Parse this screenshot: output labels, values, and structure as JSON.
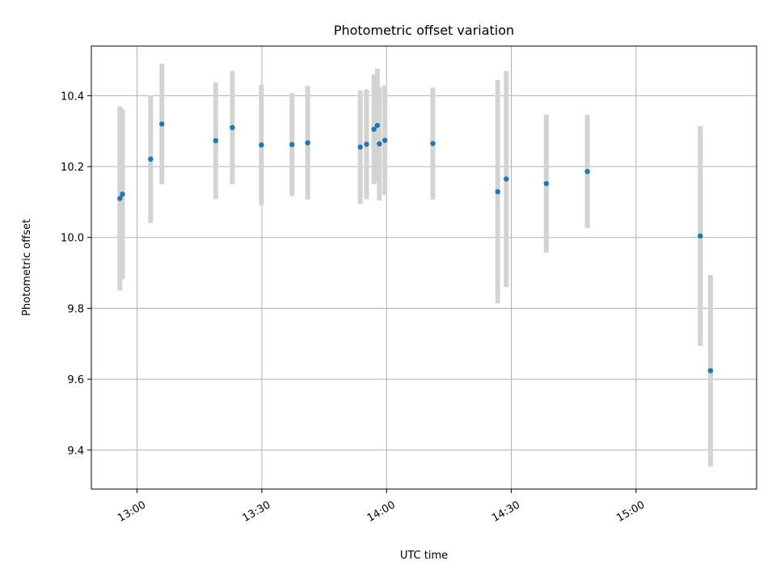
{
  "chart_data": {
    "type": "scatter",
    "title": "Photometric offset variation",
    "xlabel": "UTC time",
    "ylabel": "Photometric offset",
    "xlim": [
      "12:49",
      "15:29"
    ],
    "ylim": [
      9.29,
      10.54
    ],
    "x_ticks": [
      "13:00",
      "13:30",
      "14:00",
      "14:30",
      "15:00"
    ],
    "y_ticks": [
      9.4,
      9.6,
      9.8,
      10.0,
      10.2,
      10.4
    ],
    "y_tick_labels": [
      "9.4",
      "9.6",
      "9.8",
      "10.0",
      "10.2",
      "10.4"
    ],
    "grid": true,
    "colors": {
      "point": "#1f77b4",
      "errorbar": "#d3d3d3",
      "grid": "#b0b0b0"
    },
    "points": [
      {
        "x": "12:55:52",
        "y": 10.11,
        "err": 0.26
      },
      {
        "x": "12:56:29",
        "y": 10.122,
        "err": 0.24
      },
      {
        "x": "13:03:16",
        "y": 10.221,
        "err": 0.18
      },
      {
        "x": "13:05:58",
        "y": 10.32,
        "err": 0.17
      },
      {
        "x": "13:18:55",
        "y": 10.273,
        "err": 0.165
      },
      {
        "x": "13:22:55",
        "y": 10.31,
        "err": 0.16
      },
      {
        "x": "13:29:54",
        "y": 10.261,
        "err": 0.17
      },
      {
        "x": "13:37:16",
        "y": 10.262,
        "err": 0.145
      },
      {
        "x": "13:41:02",
        "y": 10.267,
        "err": 0.16
      },
      {
        "x": "13:53:41",
        "y": 10.255,
        "err": 0.16
      },
      {
        "x": "13:55:11",
        "y": 10.263,
        "err": 0.155
      },
      {
        "x": "13:56:58",
        "y": 10.305,
        "err": 0.155
      },
      {
        "x": "13:57:47",
        "y": 10.316,
        "err": 0.16
      },
      {
        "x": "13:58:17",
        "y": 10.264,
        "err": 0.16
      },
      {
        "x": "13:59:36",
        "y": 10.274,
        "err": 0.155
      },
      {
        "x": "14:11:08",
        "y": 10.265,
        "err": 0.158
      },
      {
        "x": "14:26:44",
        "y": 10.129,
        "err": 0.315
      },
      {
        "x": "14:28:48",
        "y": 10.165,
        "err": 0.305
      },
      {
        "x": "14:38:25",
        "y": 10.152,
        "err": 0.195
      },
      {
        "x": "14:48:18",
        "y": 10.186,
        "err": 0.16
      },
      {
        "x": "15:15:27",
        "y": 10.004,
        "err": 0.31
      },
      {
        "x": "15:17:55",
        "y": 9.624,
        "err": 0.27
      }
    ]
  }
}
